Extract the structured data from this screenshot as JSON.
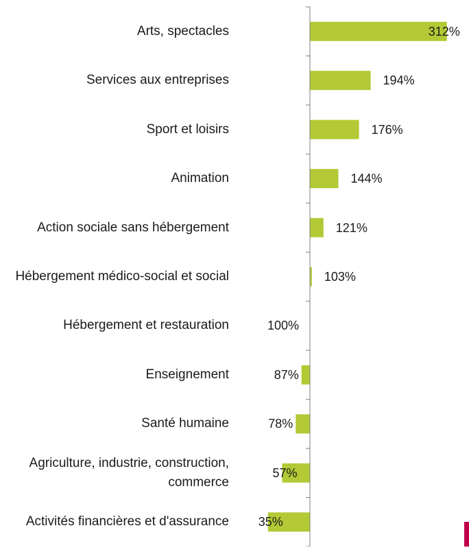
{
  "chart_data": {
    "type": "bar",
    "orientation": "horizontal",
    "baseline": 100,
    "categories": [
      "Arts, spectacles",
      "Services aux entreprises",
      "Sport et loisirs",
      "Animation",
      "Action sociale sans hébergement",
      "Hébergement médico-social et social",
      "Hébergement et restauration",
      "Enseignement",
      "Santé humaine",
      "Agriculture, industrie, construction, commerce",
      "Activités financières et d'assurance"
    ],
    "values": [
      312,
      194,
      176,
      144,
      121,
      103,
      100,
      87,
      78,
      57,
      35
    ],
    "data_labels": [
      "312%",
      "194%",
      "176%",
      "144%",
      "121%",
      "103%",
      "100%",
      "87%",
      "78%",
      "57%",
      "35%"
    ],
    "bar_color": "#b3c935",
    "axis_color": "#7f7f7f",
    "accent_color": "#c0004a"
  }
}
